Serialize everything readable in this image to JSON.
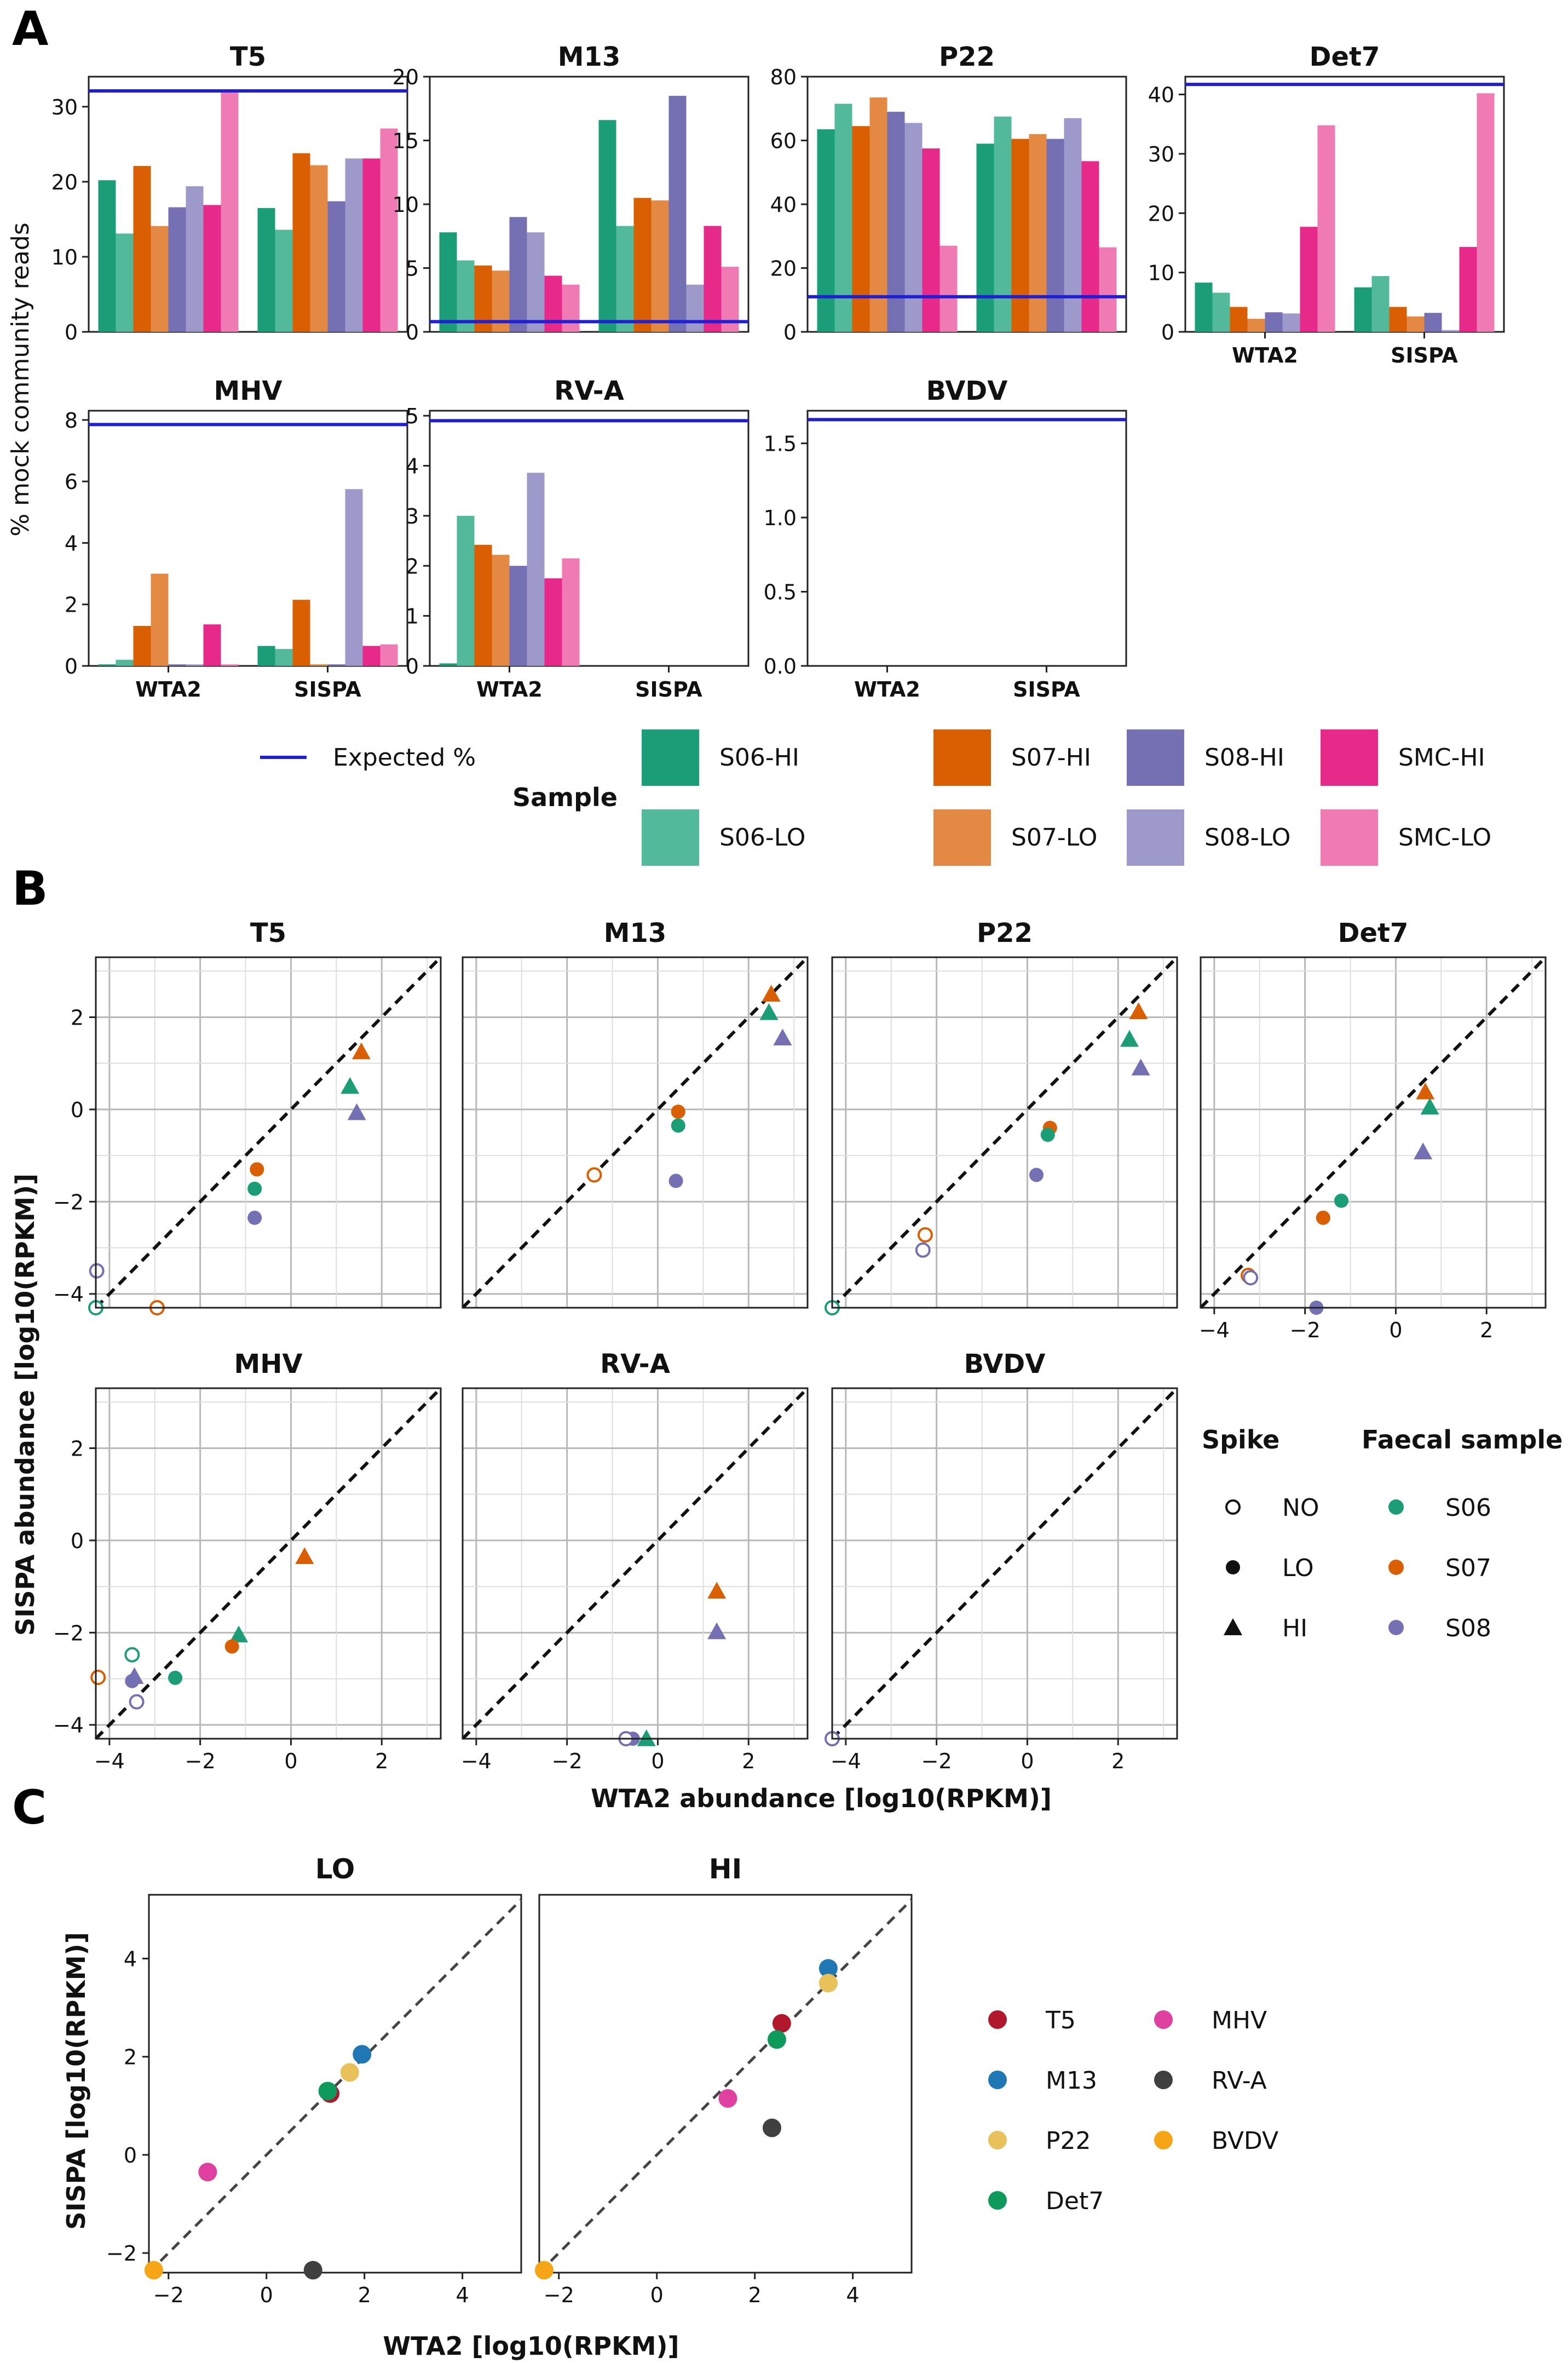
{
  "panels": {
    "a_label": "A",
    "b_label": "B",
    "c_label": "C"
  },
  "colors": {
    "S06-HI": "#1b9e77",
    "S06-LO": "#52b99a",
    "S07-HI": "#d95f02",
    "S07-LO": "#e48944",
    "S08-HI": "#7570b3",
    "S08-LO": "#9d99ca",
    "SMC-HI": "#e7298a",
    "SMC-LO": "#f07ab3",
    "expected": "#1f1fd6",
    "S06": "#1b9e77",
    "S07": "#d95f02",
    "S08": "#7570b3",
    "T5": "#b2182b",
    "M13": "#1f78b4",
    "P22": "#e8c15a",
    "Det7": "#0d9a5a",
    "MHV": "#e040a0",
    "RV-A": "#404040",
    "BVDV": "#f5a516"
  },
  "chart_data": [
    {
      "panel": "A",
      "type": "bar",
      "ylabel": "% mock community reads",
      "categories": [
        "WTA2",
        "SISPA"
      ],
      "series_names": [
        "S06-HI",
        "S06-LO",
        "S07-HI",
        "S07-LO",
        "S08-HI",
        "S08-LO",
        "SMC-HI",
        "SMC-LO"
      ],
      "legend": {
        "expected_label": "Expected %",
        "title": "Sample",
        "entries": [
          "S06-HI",
          "S07-HI",
          "S08-HI",
          "SMC-HI",
          "S06-LO",
          "S07-LO",
          "S08-LO",
          "SMC-LO"
        ]
      },
      "facets": [
        {
          "title": "T5",
          "ylim": [
            0,
            34
          ],
          "yticks": [
            0,
            10,
            20,
            30
          ],
          "expected": 32.1,
          "show_x": false,
          "values": [
            [
              20.2,
              13.1,
              22.1,
              14.1,
              16.6,
              19.4,
              16.9,
              32.0
            ],
            [
              16.5,
              13.6,
              23.8,
              22.2,
              17.4,
              23.1,
              23.1,
              27.1
            ]
          ]
        },
        {
          "title": "M13",
          "ylim": [
            0,
            20
          ],
          "yticks": [
            0,
            5,
            10,
            15,
            20
          ],
          "expected": 0.8,
          "show_x": false,
          "values": [
            [
              7.8,
              5.6,
              5.2,
              4.8,
              9.0,
              7.8,
              4.4,
              3.7
            ],
            [
              16.6,
              8.3,
              10.5,
              10.3,
              18.5,
              3.7,
              8.3,
              5.1
            ]
          ]
        },
        {
          "title": "P22",
          "ylim": [
            0,
            80
          ],
          "yticks": [
            0,
            20,
            40,
            60,
            80
          ],
          "expected": 11,
          "show_x": false,
          "values": [
            [
              63.5,
              71.5,
              64.5,
              73.5,
              69,
              65.5,
              57.5,
              27
            ],
            [
              59,
              67.5,
              60.5,
              62,
              60.5,
              67,
              53.5,
              26.5
            ]
          ]
        },
        {
          "title": "Det7",
          "ylim": [
            0,
            43
          ],
          "yticks": [
            0,
            10,
            20,
            30,
            40
          ],
          "expected": 41.7,
          "show_x": true,
          "values": [
            [
              8.3,
              6.6,
              4.2,
              2.2,
              3.3,
              3.1,
              17.7,
              34.8
            ],
            [
              7.5,
              9.4,
              4.2,
              2.6,
              3.2,
              0.3,
              14.3,
              40.2
            ]
          ]
        },
        {
          "title": "MHV",
          "ylim": [
            0,
            8.3
          ],
          "yticks": [
            0,
            2,
            4,
            6,
            8
          ],
          "expected": 7.85,
          "show_x": true,
          "values": [
            [
              0.05,
              0.2,
              1.3,
              3.0,
              0.05,
              0.05,
              1.35,
              0.05
            ],
            [
              0.65,
              0.55,
              2.15,
              0.05,
              0.05,
              5.75,
              0.65,
              0.7
            ]
          ]
        },
        {
          "title": "RV-A",
          "ylim": [
            0,
            5.1
          ],
          "yticks": [
            0,
            1,
            2,
            3,
            4,
            5
          ],
          "expected": 4.9,
          "show_x": true,
          "values": [
            [
              0.05,
              3.0,
              2.42,
              2.22,
              2.0,
              3.86,
              1.75,
              2.15
            ],
            [
              0,
              0,
              0,
              0,
              0,
              0,
              0,
              0
            ]
          ]
        },
        {
          "title": "BVDV",
          "ylim": [
            0,
            1.72
          ],
          "yticks": [
            0.0,
            0.5,
            1.0,
            1.5
          ],
          "expected": 1.66,
          "show_x": true,
          "values": [
            [
              0,
              0,
              0,
              0,
              0,
              0,
              0,
              0
            ],
            [
              0,
              0,
              0,
              0,
              0,
              0,
              0,
              0
            ]
          ]
        }
      ]
    },
    {
      "panel": "B",
      "type": "scatter",
      "xlabel": "WTA2 abundance [log10(RPKM)]",
      "ylabel": "SISPA abundance [log10(RPKM)]",
      "xlim": [
        -4.3,
        3.3
      ],
      "ylim": [
        -4.3,
        3.3
      ],
      "ticks": [
        -4,
        -2,
        0,
        2
      ],
      "legend_spike": {
        "title": "Spike",
        "entries": [
          {
            "label": "NO",
            "shape": "open"
          },
          {
            "label": "LO",
            "shape": "circle"
          },
          {
            "label": "HI",
            "shape": "triangle"
          }
        ]
      },
      "legend_sample": {
        "title": "Faecal sample",
        "entries": [
          "S06",
          "S07",
          "S08"
        ]
      },
      "facets": [
        {
          "title": "T5",
          "points": [
            {
              "x": 1.55,
              "y": 1.25,
              "s": "S07",
              "m": "HI"
            },
            {
              "x": 1.3,
              "y": 0.5,
              "s": "S06",
              "m": "HI"
            },
            {
              "x": 1.45,
              "y": -0.07,
              "s": "S08",
              "m": "HI"
            },
            {
              "x": -0.75,
              "y": -1.3,
              "s": "S07",
              "m": "LO"
            },
            {
              "x": -0.8,
              "y": -1.72,
              "s": "S06",
              "m": "LO"
            },
            {
              "x": -0.8,
              "y": -2.35,
              "s": "S08",
              "m": "LO"
            },
            {
              "x": -4.28,
              "y": -3.5,
              "s": "S08",
              "m": "NO"
            },
            {
              "x": -2.95,
              "y": -4.3,
              "s": "S07",
              "m": "NO"
            },
            {
              "x": -4.3,
              "y": -4.3,
              "s": "S06",
              "m": "NO"
            }
          ]
        },
        {
          "title": "M13",
          "points": [
            {
              "x": 2.5,
              "y": 2.5,
              "s": "S07",
              "m": "HI"
            },
            {
              "x": 2.45,
              "y": 2.1,
              "s": "S06",
              "m": "HI"
            },
            {
              "x": 2.75,
              "y": 1.55,
              "s": "S08",
              "m": "HI"
            },
            {
              "x": 0.45,
              "y": -0.05,
              "s": "S07",
              "m": "LO"
            },
            {
              "x": 0.45,
              "y": -0.35,
              "s": "S06",
              "m": "LO"
            },
            {
              "x": 0.4,
              "y": -1.55,
              "s": "S08",
              "m": "LO"
            },
            {
              "x": -1.4,
              "y": -1.42,
              "s": "S07",
              "m": "NO"
            }
          ]
        },
        {
          "title": "P22",
          "points": [
            {
              "x": 2.45,
              "y": 2.12,
              "s": "S07",
              "m": "HI"
            },
            {
              "x": 2.25,
              "y": 1.52,
              "s": "S06",
              "m": "HI"
            },
            {
              "x": 2.5,
              "y": 0.9,
              "s": "S08",
              "m": "HI"
            },
            {
              "x": 0.5,
              "y": -0.4,
              "s": "S07",
              "m": "LO"
            },
            {
              "x": 0.45,
              "y": -0.55,
              "s": "S06",
              "m": "LO"
            },
            {
              "x": 0.2,
              "y": -1.42,
              "s": "S08",
              "m": "LO"
            },
            {
              "x": -2.25,
              "y": -2.72,
              "s": "S07",
              "m": "NO"
            },
            {
              "x": -2.3,
              "y": -3.05,
              "s": "S08",
              "m": "NO"
            },
            {
              "x": -4.3,
              "y": -4.3,
              "s": "S06",
              "m": "NO"
            }
          ]
        },
        {
          "title": "Det7",
          "points": [
            {
              "x": 0.65,
              "y": 0.38,
              "s": "S07",
              "m": "HI"
            },
            {
              "x": 0.75,
              "y": 0.05,
              "s": "S06",
              "m": "HI"
            },
            {
              "x": 0.6,
              "y": -0.92,
              "s": "S08",
              "m": "HI"
            },
            {
              "x": -1.2,
              "y": -1.98,
              "s": "S06",
              "m": "LO"
            },
            {
              "x": -1.6,
              "y": -2.35,
              "s": "S07",
              "m": "LO"
            },
            {
              "x": -1.75,
              "y": -4.3,
              "s": "S08",
              "m": "LO"
            },
            {
              "x": -3.25,
              "y": -3.6,
              "s": "S07",
              "m": "NO"
            },
            {
              "x": -3.2,
              "y": -3.65,
              "s": "S08",
              "m": "NO"
            }
          ]
        },
        {
          "title": "MHV",
          "points": [
            {
              "x": 0.3,
              "y": -0.35,
              "s": "S07",
              "m": "HI"
            },
            {
              "x": -1.15,
              "y": -2.05,
              "s": "S06",
              "m": "HI"
            },
            {
              "x": -3.45,
              "y": -2.95,
              "s": "S08",
              "m": "HI"
            },
            {
              "x": -1.3,
              "y": -2.3,
              "s": "S07",
              "m": "LO"
            },
            {
              "x": -2.55,
              "y": -2.98,
              "s": "S06",
              "m": "LO"
            },
            {
              "x": -3.5,
              "y": -3.05,
              "s": "S08",
              "m": "LO"
            },
            {
              "x": -3.5,
              "y": -2.48,
              "s": "S06",
              "m": "NO"
            },
            {
              "x": -4.25,
              "y": -2.97,
              "s": "S07",
              "m": "NO"
            },
            {
              "x": -3.4,
              "y": -3.5,
              "s": "S08",
              "m": "NO"
            }
          ]
        },
        {
          "title": "RV-A",
          "points": [
            {
              "x": 1.3,
              "y": -1.1,
              "s": "S07",
              "m": "HI"
            },
            {
              "x": 1.3,
              "y": -1.98,
              "s": "S08",
              "m": "HI"
            },
            {
              "x": -0.25,
              "y": -4.3,
              "s": "S06",
              "m": "HI"
            },
            {
              "x": -0.55,
              "y": -4.3,
              "s": "S08",
              "m": "LO"
            },
            {
              "x": -0.7,
              "y": -4.3,
              "s": "S08",
              "m": "NO"
            }
          ]
        },
        {
          "title": "BVDV",
          "points": [
            {
              "x": -4.3,
              "y": -4.3,
              "s": "S08",
              "m": "NO"
            }
          ]
        }
      ]
    },
    {
      "panel": "C",
      "type": "scatter",
      "xlabel": "WTA2 [log10(RPKM)]",
      "ylabel": "SISPA [log10(RPKM)]",
      "xlim": [
        -2.4,
        5.2
      ],
      "ylim": [
        -2.4,
        5.3
      ],
      "xticks": [
        -2,
        0,
        2,
        4
      ],
      "yticks": [
        -2,
        0,
        2,
        4
      ],
      "legend": [
        "T5",
        "M13",
        "P22",
        "Det7",
        "MHV",
        "RV-A",
        "BVDV"
      ],
      "facets": [
        {
          "title": "LO",
          "points": [
            {
              "v": "M13",
              "x": 1.95,
              "y": 2.05
            },
            {
              "v": "P22",
              "x": 1.7,
              "y": 1.68
            },
            {
              "v": "T5",
              "x": 1.3,
              "y": 1.25
            },
            {
              "v": "Det7",
              "x": 1.25,
              "y": 1.3
            },
            {
              "v": "MHV",
              "x": -1.2,
              "y": -0.35
            },
            {
              "v": "RV-A",
              "x": 0.95,
              "y": -2.35
            },
            {
              "v": "BVDV",
              "x": -2.3,
              "y": -2.35
            }
          ]
        },
        {
          "title": "HI",
          "points": [
            {
              "v": "M13",
              "x": 3.5,
              "y": 3.8
            },
            {
              "v": "P22",
              "x": 3.5,
              "y": 3.5
            },
            {
              "v": "T5",
              "x": 2.55,
              "y": 2.68
            },
            {
              "v": "Det7",
              "x": 2.45,
              "y": 2.35
            },
            {
              "v": "MHV",
              "x": 1.45,
              "y": 1.15
            },
            {
              "v": "RV-A",
              "x": 2.35,
              "y": 0.55
            },
            {
              "v": "BVDV",
              "x": -2.3,
              "y": -2.35
            }
          ]
        }
      ]
    }
  ]
}
